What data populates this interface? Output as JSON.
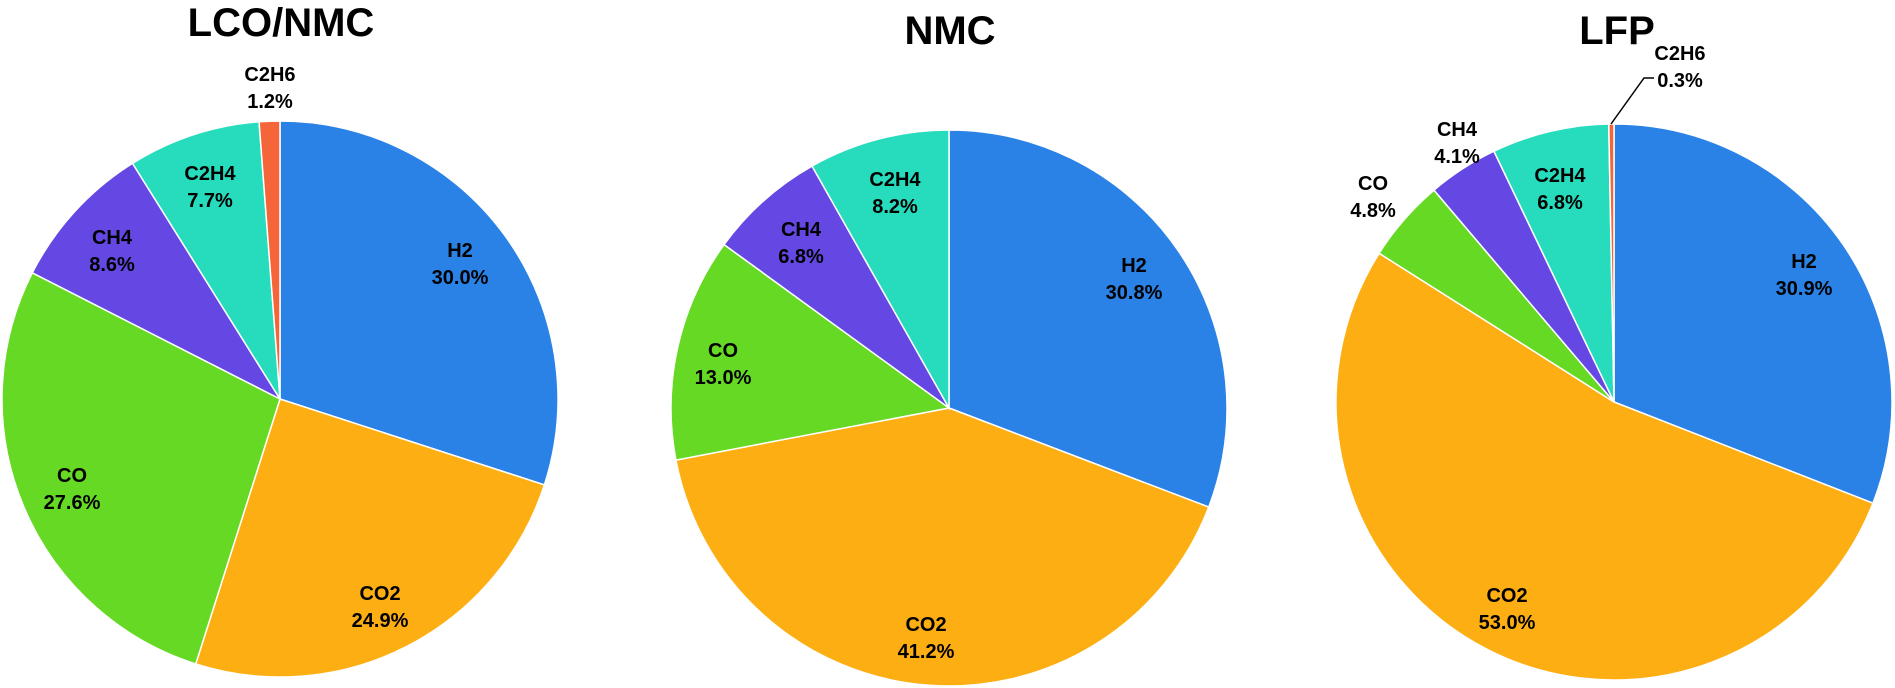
{
  "chart_data": [
    {
      "type": "pie",
      "title": "LCO/NMC",
      "slices": [
        {
          "name": "H2",
          "value": 30.0,
          "label": "30.0%",
          "color": "#2a82e6"
        },
        {
          "name": "CO2",
          "value": 24.9,
          "label": "24.9%",
          "color": "#fdae13"
        },
        {
          "name": "CO",
          "value": 27.6,
          "label": "27.6%",
          "color": "#66d924"
        },
        {
          "name": "CH4",
          "value": 8.6,
          "label": "8.6%",
          "color": "#6547e3"
        },
        {
          "name": "C2H4",
          "value": 7.7,
          "label": "7.7%",
          "color": "#26dcbd"
        },
        {
          "name": "C2H6",
          "value": 1.2,
          "label": "1.2%",
          "color": "#f4663a"
        }
      ]
    },
    {
      "type": "pie",
      "title": "NMC",
      "slices": [
        {
          "name": "H2",
          "value": 30.8,
          "label": "30.8%",
          "color": "#2a82e6"
        },
        {
          "name": "CO2",
          "value": 41.2,
          "label": "41.2%",
          "color": "#fdae13"
        },
        {
          "name": "CO",
          "value": 13.0,
          "label": "13.0%",
          "color": "#66d924"
        },
        {
          "name": "CH4",
          "value": 6.8,
          "label": "6.8%",
          "color": "#6547e3"
        },
        {
          "name": "C2H4",
          "value": 8.2,
          "label": "8.2%",
          "color": "#26dcbd"
        }
      ]
    },
    {
      "type": "pie",
      "title": "LFP",
      "slices": [
        {
          "name": "H2",
          "value": 30.9,
          "label": "30.9%",
          "color": "#2a82e6"
        },
        {
          "name": "CO2",
          "value": 53.0,
          "label": "53.0%",
          "color": "#fdae13"
        },
        {
          "name": "CO",
          "value": 4.8,
          "label": "4.8%",
          "color": "#66d924"
        },
        {
          "name": "CH4",
          "value": 4.1,
          "label": "4.1%",
          "color": "#6547e3"
        },
        {
          "name": "C2H4",
          "value": 6.8,
          "label": "6.8%",
          "color": "#26dcbd"
        },
        {
          "name": "C2H6",
          "value": 0.3,
          "label": "0.3%",
          "color": "#f4663a"
        }
      ]
    }
  ]
}
